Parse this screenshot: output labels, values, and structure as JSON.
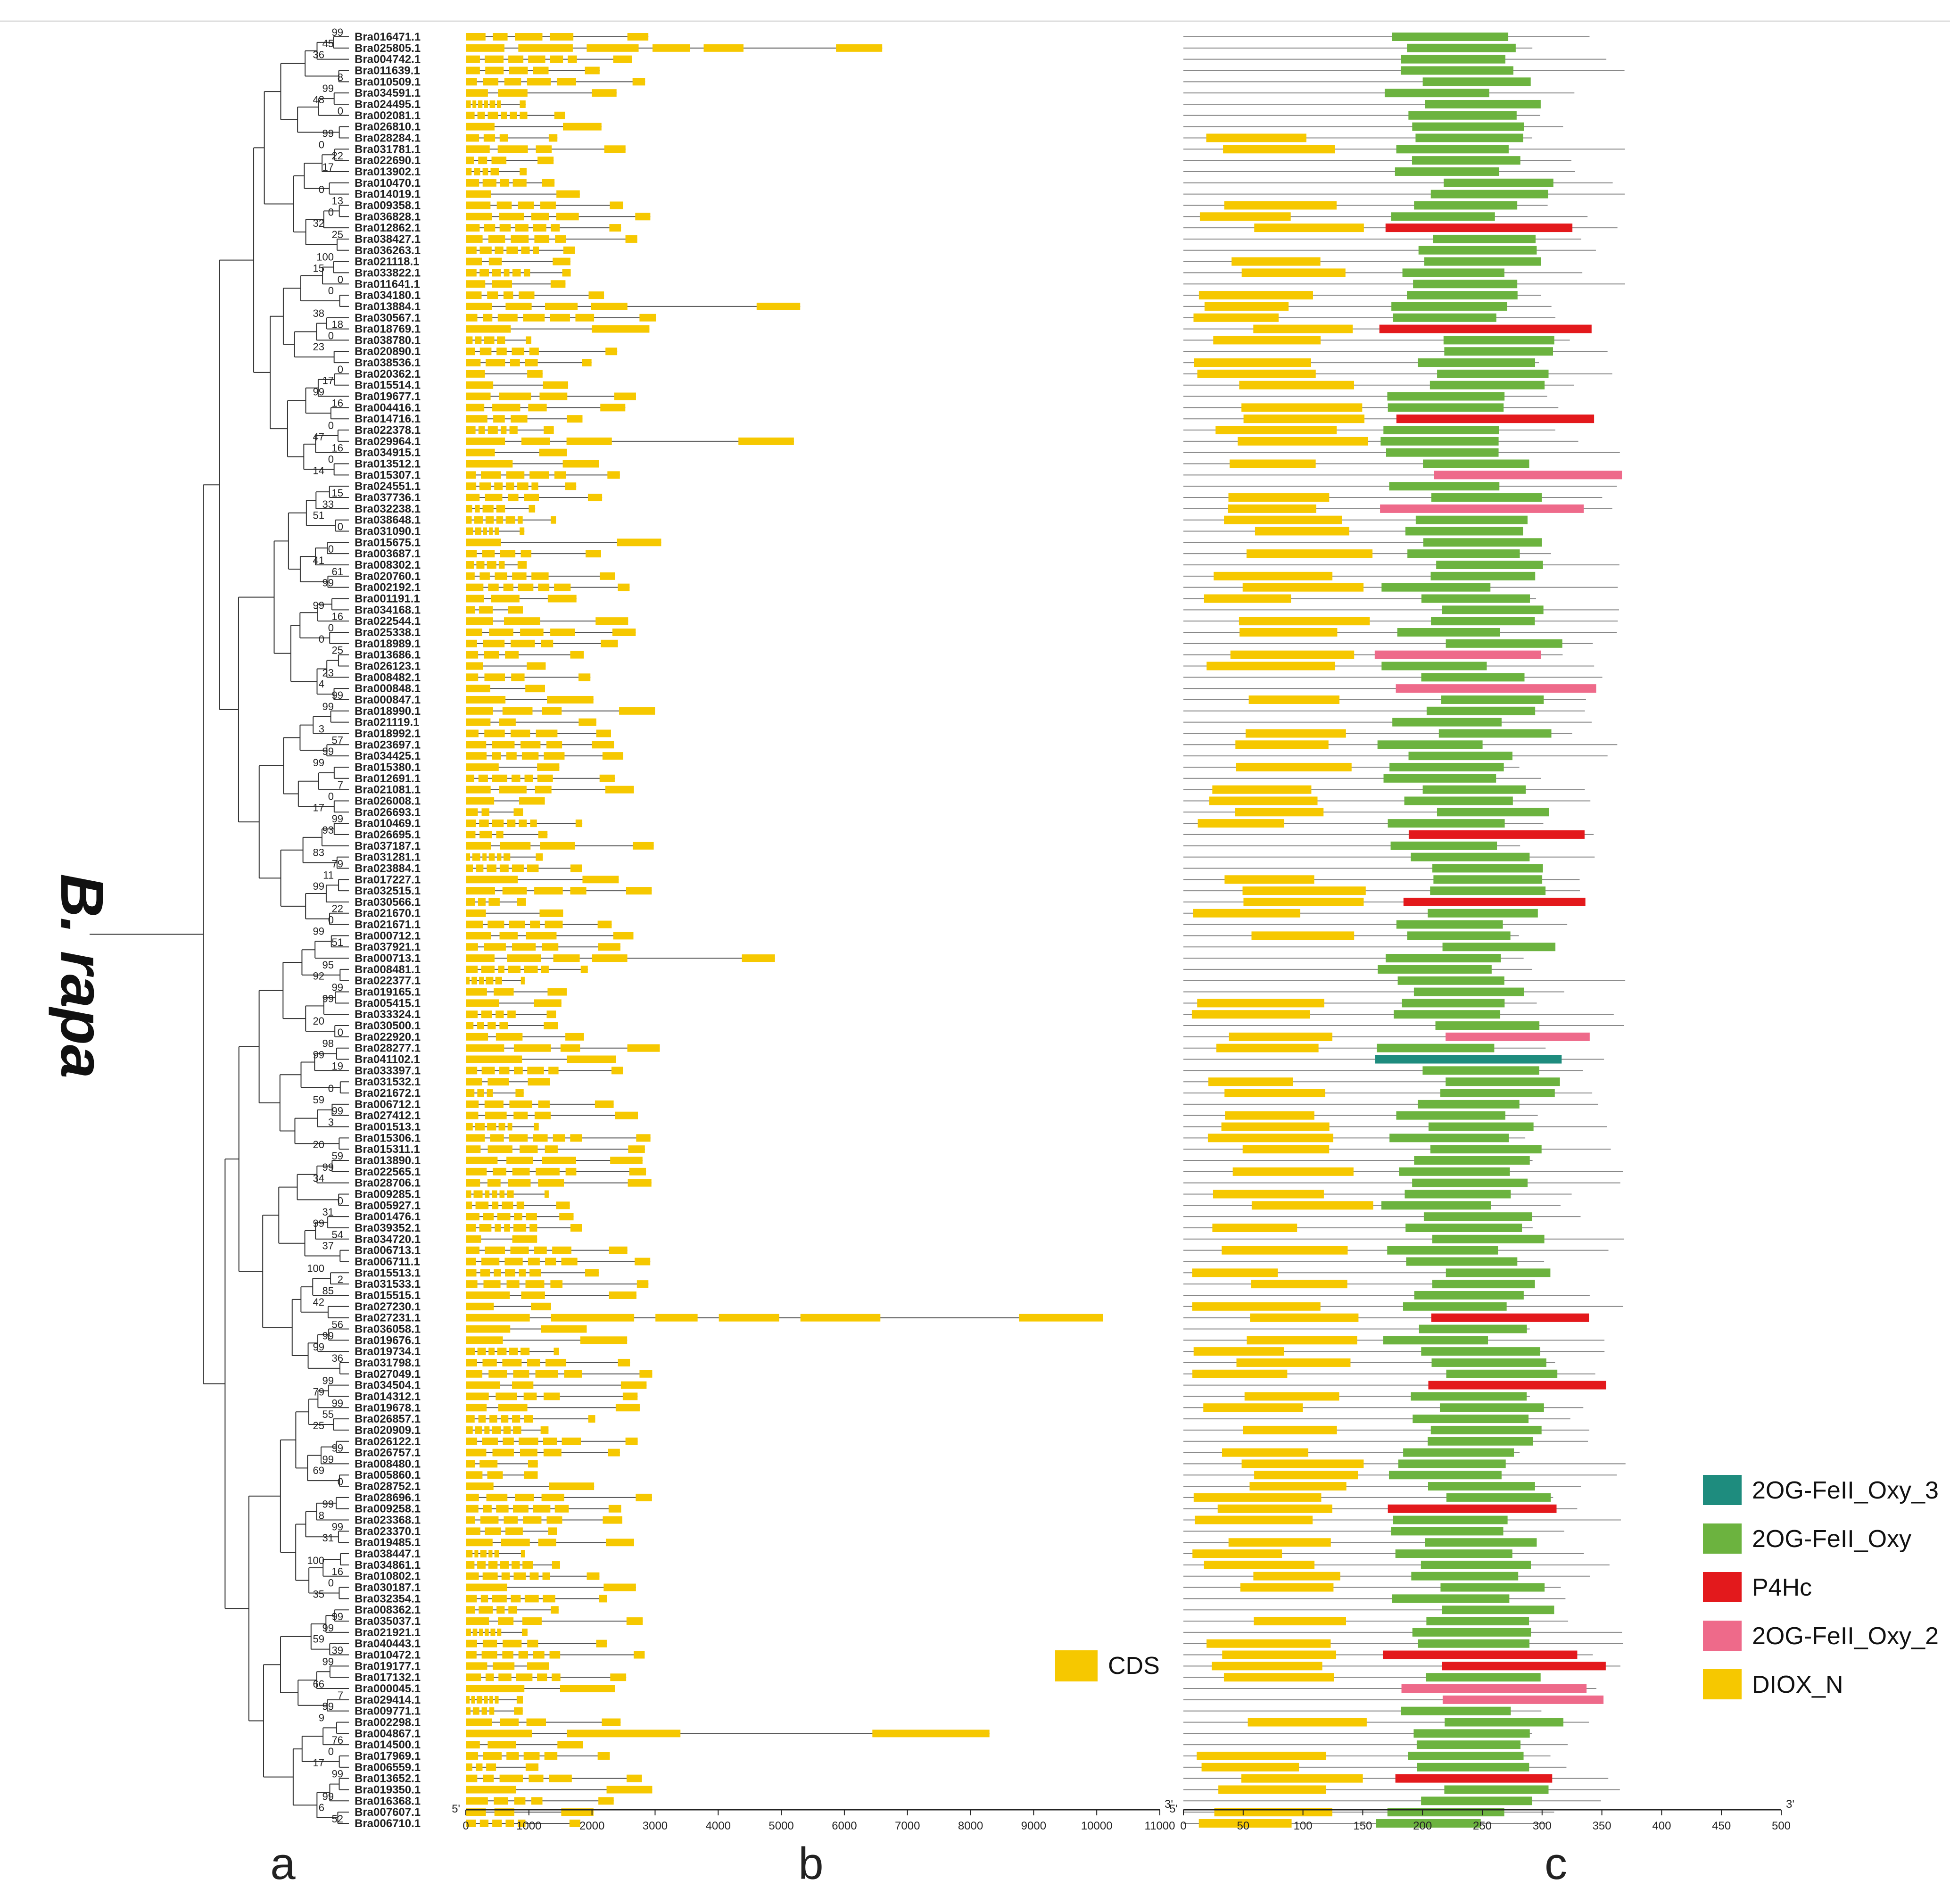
{
  "species_label": "B. rapa",
  "panel_labels": [
    "a",
    "b",
    "c"
  ],
  "colors": {
    "cds": "#F6C800",
    "oxy3": "#1E8C7E",
    "oxy": "#6CB33F",
    "p4hc": "#E3191C",
    "oxy2": "#EE6A8A",
    "dioxn": "#F6C800",
    "line": "#555555"
  },
  "genes": [
    "Bra016471.1",
    "Bra025805.1",
    "Bra004742.1",
    "Bra011639.1",
    "Bra010509.1",
    "Bra034591.1",
    "Bra024495.1",
    "Bra002081.1",
    "Bra026810.1",
    "Bra028284.1",
    "Bra031781.1",
    "Bra022690.1",
    "Bra013902.1",
    "Bra010470.1",
    "Bra014019.1",
    "Bra009358.1",
    "Bra036828.1",
    "Bra012862.1",
    "Bra038427.1",
    "Bra036263.1",
    "Bra021118.1",
    "Bra033822.1",
    "Bra011641.1",
    "Bra034180.1",
    "Bra013884.1",
    "Bra030567.1",
    "Bra018769.1",
    "Bra038780.1",
    "Bra020890.1",
    "Bra038536.1",
    "Bra020362.1",
    "Bra015514.1",
    "Bra019677.1",
    "Bra004416.1",
    "Bra014716.1",
    "Bra022378.1",
    "Bra029964.1",
    "Bra034915.1",
    "Bra013512.1",
    "Bra015307.1",
    "Bra024551.1",
    "Bra037736.1",
    "Bra032238.1",
    "Bra038648.1",
    "Bra031090.1",
    "Bra015675.1",
    "Bra003687.1",
    "Bra008302.1",
    "Bra020760.1",
    "Bra002192.1",
    "Bra001191.1",
    "Bra034168.1",
    "Bra022544.1",
    "Bra025338.1",
    "Bra018989.1",
    "Bra013686.1",
    "Bra026123.1",
    "Bra008482.1",
    "Bra000848.1",
    "Bra000847.1",
    "Bra018990.1",
    "Bra021119.1",
    "Bra018992.1",
    "Bra023697.1",
    "Bra034425.1",
    "Bra015380.1",
    "Bra012691.1",
    "Bra021081.1",
    "Bra026008.1",
    "Bra026693.1",
    "Bra010469.1",
    "Bra026695.1",
    "Bra037187.1",
    "Bra031281.1",
    "Bra023884.1",
    "Bra017227.1",
    "Bra032515.1",
    "Bra030566.1",
    "Bra021670.1",
    "Bra021671.1",
    "Bra000712.1",
    "Bra037921.1",
    "Bra000713.1",
    "Bra008481.1",
    "Bra022377.1",
    "Bra019165.1",
    "Bra005415.1",
    "Bra033324.1",
    "Bra030500.1",
    "Bra022920.1",
    "Bra028277.1",
    "Bra041102.1",
    "Bra033397.1",
    "Bra031532.1",
    "Bra021672.1",
    "Bra006712.1",
    "Bra027412.1",
    "Bra001513.1",
    "Bra015306.1",
    "Bra015311.1",
    "Bra013890.1",
    "Bra022565.1",
    "Bra028706.1",
    "Bra009285.1",
    "Bra005927.1",
    "Bra001476.1",
    "Bra039352.1",
    "Bra034720.1",
    "Bra006713.1",
    "Bra006711.1",
    "Bra015513.1",
    "Bra031533.1",
    "Bra015515.1",
    "Bra027230.1",
    "Bra027231.1",
    "Bra036058.1",
    "Bra019676.1",
    "Bra019734.1",
    "Bra031798.1",
    "Bra027049.1",
    "Bra034504.1",
    "Bra014312.1",
    "Bra019678.1",
    "Bra026857.1",
    "Bra020909.1",
    "Bra026122.1",
    "Bra026757.1",
    "Bra008480.1",
    "Bra005860.1",
    "Bra028752.1",
    "Bra028696.1",
    "Bra009258.1",
    "Bra023368.1",
    "Bra023370.1",
    "Bra019485.1",
    "Bra038447.1",
    "Bra034861.1",
    "Bra010802.1",
    "Bra030187.1",
    "Bra032354.1",
    "Bra008362.1",
    "Bra035037.1",
    "Bra021921.1",
    "Bra040443.1",
    "Bra010472.1",
    "Bra019177.1",
    "Bra017132.1",
    "Bra000045.1",
    "Bra029414.1",
    "Bra009771.1",
    "Bra002298.1",
    "Bra004867.1",
    "Bra014500.1",
    "Bra017969.1",
    "Bra006559.1",
    "Bra013652.1",
    "Bra019350.1",
    "Bra016368.1",
    "Bra007607.1",
    "Bra006710.1"
  ],
  "bootstrap_values": [
    "99",
    "45",
    "36",
    "8",
    "99",
    "48",
    "0",
    "99",
    "0",
    "22",
    "17",
    "0",
    "13",
    "0",
    "32",
    "25",
    "100",
    "15",
    "0",
    "0",
    "38",
    "18",
    "0",
    "23",
    "0",
    "17",
    "99",
    "16",
    "0",
    "47",
    "16",
    "0",
    "14",
    "15",
    "33",
    "51",
    "0",
    "0",
    "41",
    "61",
    "99",
    "99",
    "16",
    "0",
    "0",
    "25",
    "23",
    "4",
    "99",
    "99",
    "3",
    "57",
    "99",
    "99",
    "7",
    "0",
    "17",
    "99",
    "93",
    "83",
    "79",
    "11",
    "99",
    "22",
    "0",
    "99",
    "51",
    "95",
    "92",
    "99",
    "99",
    "20",
    "0",
    "98",
    "99",
    "19",
    "0",
    "59",
    "99",
    "3",
    "20",
    "59",
    "99",
    "34",
    "0",
    "31",
    "99",
    "54",
    "37",
    "100",
    "2",
    "85",
    "42",
    "56",
    "99",
    "99",
    "36",
    "99",
    "79",
    "99",
    "55",
    "25",
    "99",
    "99",
    "69",
    "0",
    "99",
    "8",
    "99",
    "31",
    "100",
    "16",
    "0",
    "35",
    "99",
    "99",
    "59",
    "39",
    "99",
    "66",
    "7",
    "99",
    "9",
    "76",
    "0",
    "17",
    "99",
    "99",
    "6",
    "52"
  ],
  "gene_axis": {
    "label_start": "5'",
    "label_end": "3'",
    "min": 0,
    "max": 11000,
    "ticks": [
      "0",
      "1000",
      "2000",
      "3000",
      "4000",
      "5000",
      "6000",
      "7000",
      "8000",
      "9000",
      "10000",
      "11000"
    ]
  },
  "protein_axis": {
    "label_start": "5'",
    "label_end": "3'",
    "min": 0,
    "max": 500,
    "ticks": [
      "0",
      "50",
      "100",
      "150",
      "200",
      "250",
      "300",
      "350",
      "400",
      "450",
      "500"
    ]
  },
  "cds_legend": "CDS",
  "domain_legend": [
    {
      "key": "oxy3",
      "label": "2OG-FeII_Oxy_3"
    },
    {
      "key": "oxy",
      "label": "2OG-FeII_Oxy"
    },
    {
      "key": "p4hc",
      "label": "P4Hc"
    },
    {
      "key": "oxy2",
      "label": "2OG-FeII_Oxy_2"
    },
    {
      "key": "dioxn",
      "label": "DIOX_N"
    }
  ]
}
